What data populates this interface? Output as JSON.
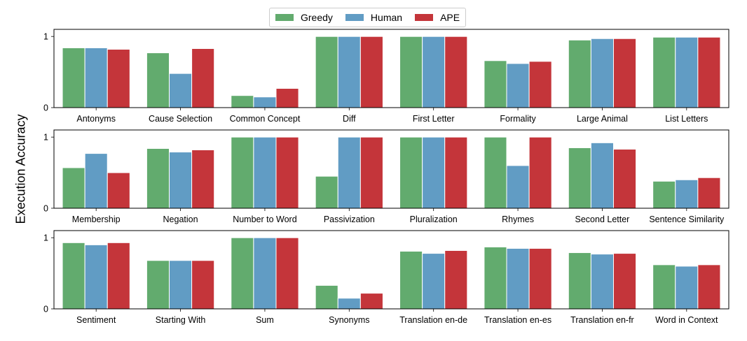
{
  "chart_data": {
    "type": "bar",
    "ylabel": "Execution Accuracy",
    "ylim": [
      0,
      1.1
    ],
    "yticks": [
      "0",
      "1"
    ],
    "legend": {
      "placement": "top-center"
    },
    "series_meta": [
      {
        "name": "Greedy",
        "color": "#62ab6e"
      },
      {
        "name": "Human",
        "color": "#619cc4"
      },
      {
        "name": "APE",
        "color": "#c4353a"
      }
    ],
    "panels": [
      {
        "categories": [
          "Antonyms",
          "Cause Selection",
          "Common Concept",
          "Diff",
          "First Letter",
          "Formality",
          "Large Animal",
          "List Letters"
        ],
        "series": [
          {
            "name": "Greedy",
            "values": [
              0.84,
              0.77,
              0.17,
              1.0,
              1.0,
              0.66,
              0.95,
              0.99
            ]
          },
          {
            "name": "Human",
            "values": [
              0.84,
              0.48,
              0.15,
              1.0,
              1.0,
              0.62,
              0.97,
              0.99
            ]
          },
          {
            "name": "APE",
            "values": [
              0.82,
              0.83,
              0.27,
              1.0,
              1.0,
              0.65,
              0.97,
              0.99
            ]
          }
        ]
      },
      {
        "categories": [
          "Membership",
          "Negation",
          "Number to Word",
          "Passivization",
          "Pluralization",
          "Rhymes",
          "Second Letter",
          "Sentence Similarity"
        ],
        "series": [
          {
            "name": "Greedy",
            "values": [
              0.57,
              0.84,
              1.0,
              0.45,
              1.0,
              1.0,
              0.85,
              0.38
            ]
          },
          {
            "name": "Human",
            "values": [
              0.77,
              0.79,
              1.0,
              1.0,
              1.0,
              0.6,
              0.92,
              0.4
            ]
          },
          {
            "name": "APE",
            "values": [
              0.5,
              0.82,
              1.0,
              1.0,
              1.0,
              1.0,
              0.83,
              0.43
            ]
          }
        ]
      },
      {
        "categories": [
          "Sentiment",
          "Starting With",
          "Sum",
          "Synonyms",
          "Translation en-de",
          "Translation en-es",
          "Translation en-fr",
          "Word in Context"
        ],
        "series": [
          {
            "name": "Greedy",
            "values": [
              0.93,
              0.68,
              1.0,
              0.33,
              0.81,
              0.87,
              0.79,
              0.62
            ]
          },
          {
            "name": "Human",
            "values": [
              0.9,
              0.68,
              1.0,
              0.15,
              0.78,
              0.85,
              0.77,
              0.6
            ]
          },
          {
            "name": "APE",
            "values": [
              0.93,
              0.68,
              1.0,
              0.22,
              0.82,
              0.85,
              0.78,
              0.62
            ]
          }
        ]
      }
    ]
  }
}
